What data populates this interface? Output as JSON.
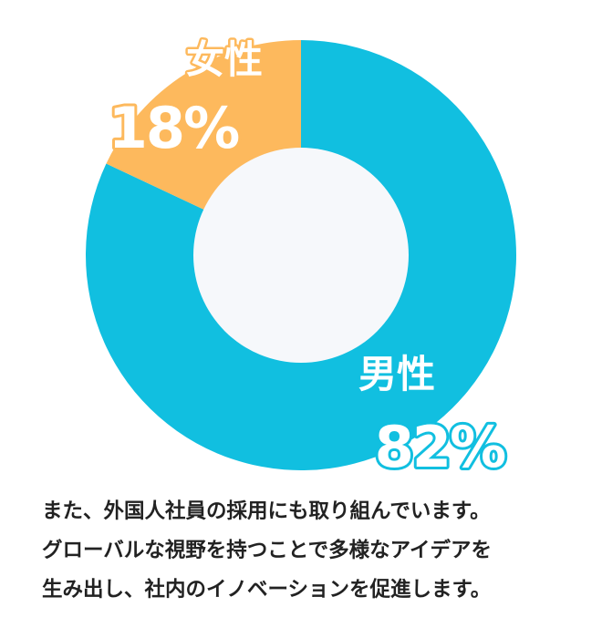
{
  "chart_data": {
    "type": "pie",
    "donut": true,
    "categories": [
      "男性",
      "女性"
    ],
    "values": [
      82,
      18
    ],
    "value_labels": [
      "82%",
      "18%"
    ],
    "colors": [
      "#11bfe0",
      "#fdb95d"
    ],
    "center_color": "#f6f8fb",
    "title": "",
    "legend": "none"
  },
  "caption": "また、外国人社員の採用にも取り組んでいます。\nグローバルな視野を持つことで多様なアイデアを\n生み出し、社内のイノベーションを促進します。"
}
